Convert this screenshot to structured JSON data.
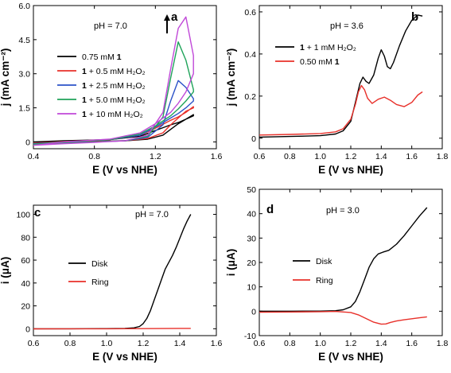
{
  "chart_data": [
    {
      "panel": "a",
      "type": "line",
      "annotation": "pH = 7.0",
      "xlabel": "E (V vs NHE)",
      "ylabel": "j (mA cm⁻²)",
      "xlim": [
        0.4,
        1.6
      ],
      "ylim": [
        -0.3,
        6.0
      ],
      "xticks": [
        "0.4",
        "0.8",
        "1.2",
        "1.6"
      ],
      "yticks": [
        "0",
        "1.5",
        "3.0",
        "4.5",
        "6.0"
      ],
      "legend_position": "middle-left",
      "arrow": "up",
      "series": [
        {
          "name": "0.75 mM 1",
          "legend": [
            "0.75 mM ",
            "1",
            ""
          ],
          "color": "#000000",
          "x": [
            0.4,
            0.6,
            0.8,
            1.0,
            1.15,
            1.25,
            1.3,
            1.35,
            1.4,
            1.45,
            1.45,
            1.4,
            1.35,
            1.3,
            1.2,
            1.1,
            0.9,
            0.6,
            0.4
          ],
          "y": [
            0.0,
            0.02,
            0.03,
            0.05,
            0.12,
            0.3,
            0.55,
            0.8,
            1.0,
            1.15,
            1.2,
            1.0,
            0.85,
            0.75,
            0.5,
            0.25,
            0.1,
            0.05,
            0.0
          ]
        },
        {
          "name": "1 + 0.5 mM H2O2",
          "legend": [
            "",
            "1",
            " + 0.5 mM H₂O₂"
          ],
          "color": "#e8302a",
          "x": [
            0.4,
            0.6,
            0.8,
            1.0,
            1.15,
            1.25,
            1.3,
            1.35,
            1.4,
            1.45,
            1.45,
            1.4,
            1.35,
            1.3,
            1.2,
            1.1,
            0.9,
            0.6,
            0.4
          ],
          "y": [
            -0.05,
            0.0,
            0.02,
            0.05,
            0.15,
            0.4,
            0.75,
            1.05,
            1.35,
            1.5,
            1.55,
            1.3,
            1.1,
            0.95,
            0.6,
            0.3,
            0.1,
            0.02,
            -0.05
          ]
        },
        {
          "name": "1 + 2.5 mM H2O2",
          "legend": [
            "",
            "1",
            " + 2.5 mM H₂O₂"
          ],
          "color": "#2b52c8",
          "x": [
            0.4,
            0.6,
            0.8,
            1.0,
            1.15,
            1.25,
            1.3,
            1.35,
            1.4,
            1.45,
            1.45,
            1.4,
            1.35,
            1.3,
            1.2,
            1.1,
            0.9,
            0.6,
            0.4
          ],
          "y": [
            -0.08,
            -0.04,
            0.0,
            0.05,
            0.2,
            0.75,
            1.8,
            2.7,
            2.4,
            1.9,
            1.8,
            1.5,
            1.25,
            1.05,
            0.65,
            0.3,
            0.1,
            0.0,
            -0.08
          ]
        },
        {
          "name": "1 + 5.0 mM H2O2",
          "legend": [
            "",
            "1",
            " + 5.0 mM H₂O₂"
          ],
          "color": "#1fa35a",
          "x": [
            0.4,
            0.6,
            0.8,
            1.0,
            1.15,
            1.25,
            1.3,
            1.35,
            1.4,
            1.45,
            1.45,
            1.4,
            1.35,
            1.3,
            1.2,
            1.1,
            0.9,
            0.6,
            0.4
          ],
          "y": [
            -0.1,
            -0.05,
            0.0,
            0.05,
            0.25,
            1.1,
            2.8,
            4.4,
            3.6,
            2.3,
            2.2,
            1.8,
            1.45,
            1.15,
            0.7,
            0.35,
            0.1,
            0.0,
            -0.1
          ]
        },
        {
          "name": "1 + 10 mM H2O2",
          "legend": [
            "",
            "1",
            " + 10 mM H₂O₂"
          ],
          "color": "#c048d8",
          "x": [
            0.4,
            0.6,
            0.8,
            1.0,
            1.15,
            1.25,
            1.3,
            1.35,
            1.4,
            1.45,
            1.45,
            1.4,
            1.35,
            1.3,
            1.2,
            1.1,
            0.9,
            0.6,
            0.4
          ],
          "y": [
            -0.15,
            -0.08,
            -0.02,
            0.05,
            0.3,
            1.3,
            3.2,
            5.0,
            5.5,
            3.8,
            3.0,
            2.2,
            1.7,
            1.3,
            0.8,
            0.4,
            0.12,
            0.0,
            -0.15
          ]
        }
      ]
    },
    {
      "panel": "b",
      "type": "line",
      "annotation": "pH = 3.6",
      "xlabel": "E (V vs NHE)",
      "ylabel": "j (mA cm⁻²)",
      "xlim": [
        0.6,
        1.8
      ],
      "ylim": [
        -0.05,
        0.63
      ],
      "xticks": [
        "0.6",
        "0.8",
        "1.0",
        "1.2",
        "1.4",
        "1.6",
        "1.8"
      ],
      "yticks": [
        "0",
        "0.2",
        "0.4",
        "0.6"
      ],
      "legend_position": "top-left",
      "series": [
        {
          "name": "1 + 1 mM H2O2",
          "legend": [
            "",
            "1",
            " + 1 mM H₂O₂"
          ],
          "color": "#000000",
          "x": [
            0.6,
            0.8,
            1.0,
            1.1,
            1.15,
            1.2,
            1.23,
            1.26,
            1.28,
            1.3,
            1.32,
            1.35,
            1.38,
            1.4,
            1.42,
            1.44,
            1.46,
            1.48,
            1.52,
            1.56,
            1.6,
            1.64,
            1.67
          ],
          "y": [
            0.005,
            0.008,
            0.012,
            0.02,
            0.035,
            0.08,
            0.17,
            0.26,
            0.29,
            0.27,
            0.26,
            0.3,
            0.38,
            0.42,
            0.39,
            0.34,
            0.33,
            0.36,
            0.44,
            0.51,
            0.56,
            0.585,
            0.58
          ]
        },
        {
          "name": "0.50 mM 1",
          "legend": [
            "0.50 mM ",
            "1",
            ""
          ],
          "color": "#e8302a",
          "x": [
            0.6,
            0.8,
            1.0,
            1.1,
            1.15,
            1.2,
            1.23,
            1.25,
            1.27,
            1.29,
            1.31,
            1.34,
            1.38,
            1.42,
            1.46,
            1.5,
            1.55,
            1.6,
            1.64,
            1.67
          ],
          "y": [
            0.015,
            0.018,
            0.022,
            0.03,
            0.045,
            0.09,
            0.16,
            0.22,
            0.25,
            0.23,
            0.19,
            0.165,
            0.185,
            0.195,
            0.18,
            0.16,
            0.15,
            0.17,
            0.205,
            0.22
          ]
        }
      ]
    },
    {
      "panel": "c",
      "type": "line",
      "annotation": "pH = 7.0",
      "xlabel": "E (V vs NHE)",
      "ylabel": "i (μA)",
      "xlim": [
        0.6,
        1.6
      ],
      "ylim": [
        -6,
        108
      ],
      "xticks": [
        "0.6",
        "0.8",
        "1.0",
        "1.2",
        "1.4",
        "1.6"
      ],
      "yticks": [
        "0",
        "20",
        "40",
        "60",
        "80",
        "100"
      ],
      "legend_position": "middle-left",
      "series": [
        {
          "name": "Disk",
          "legend": [
            "Disk",
            "",
            ""
          ],
          "color": "#000000",
          "x": [
            0.6,
            0.8,
            1.0,
            1.1,
            1.15,
            1.18,
            1.2,
            1.22,
            1.24,
            1.26,
            1.28,
            1.3,
            1.32,
            1.34,
            1.36,
            1.38,
            1.4,
            1.42,
            1.44,
            1.46
          ],
          "y": [
            0.0,
            0.0,
            0.1,
            0.3,
            0.8,
            2.0,
            4.5,
            9.0,
            16,
            25,
            34,
            43,
            52,
            58,
            64,
            71,
            79,
            87,
            94,
            100
          ]
        },
        {
          "name": "Ring",
          "legend": [
            "Ring",
            "",
            ""
          ],
          "color": "#e8302a",
          "x": [
            0.6,
            0.8,
            1.0,
            1.2,
            1.3,
            1.4,
            1.46
          ],
          "y": [
            -0.1,
            0.0,
            0.0,
            0.1,
            0.2,
            0.3,
            0.35
          ]
        }
      ]
    },
    {
      "panel": "d",
      "type": "line",
      "annotation": "pH = 3.0",
      "xlabel": "E (V vs NHE)",
      "ylabel": "i (μA)",
      "xlim": [
        0.6,
        1.8
      ],
      "ylim": [
        -10,
        50
      ],
      "xticks": [
        "0.6",
        "0.8",
        "1.0",
        "1.2",
        "1.4",
        "1.6",
        "1.8"
      ],
      "yticks": [
        "-10",
        "0",
        "10",
        "20",
        "30",
        "40",
        "50"
      ],
      "legend_position": "middle-left",
      "series": [
        {
          "name": "Disk",
          "legend": [
            "Disk",
            "",
            ""
          ],
          "color": "#000000",
          "x": [
            0.6,
            0.8,
            1.0,
            1.1,
            1.15,
            1.2,
            1.23,
            1.26,
            1.29,
            1.32,
            1.35,
            1.38,
            1.41,
            1.45,
            1.5,
            1.55,
            1.6,
            1.65,
            1.7
          ],
          "y": [
            0.0,
            0.0,
            0.05,
            0.2,
            0.6,
            1.8,
            4.0,
            8.0,
            13,
            18,
            21.5,
            23.5,
            24.2,
            25,
            27.5,
            31,
            35,
            39,
            42.5
          ]
        },
        {
          "name": "Ring",
          "legend": [
            "Ring",
            "",
            ""
          ],
          "color": "#e8302a",
          "x": [
            0.6,
            0.8,
            1.0,
            1.1,
            1.2,
            1.25,
            1.3,
            1.35,
            1.4,
            1.43,
            1.46,
            1.5,
            1.55,
            1.6,
            1.65,
            1.7
          ],
          "y": [
            -0.4,
            -0.3,
            -0.2,
            -0.1,
            -0.5,
            -1.5,
            -3.0,
            -4.5,
            -5.3,
            -5.2,
            -4.6,
            -4.0,
            -3.5,
            -3.1,
            -2.7,
            -2.3
          ]
        }
      ]
    }
  ]
}
